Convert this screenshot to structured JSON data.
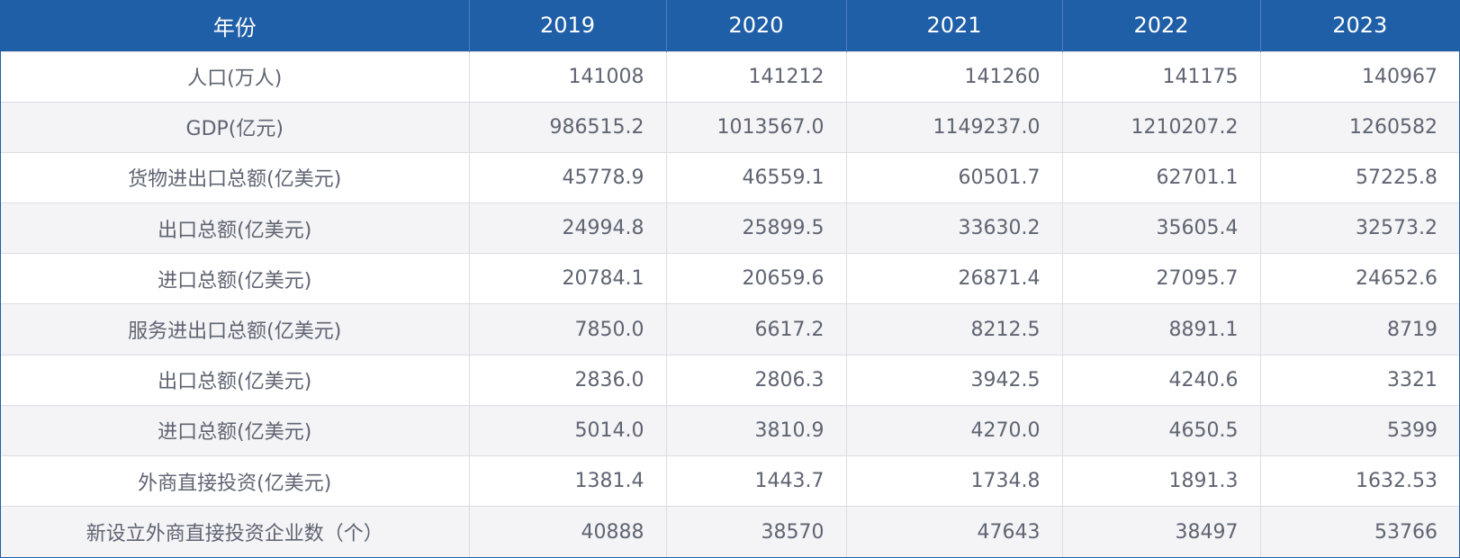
{
  "header": {
    "label": "年份",
    "years": [
      "2019",
      "2020",
      "2021",
      "2022",
      "2023"
    ]
  },
  "rows": [
    {
      "label": "人口(万人)",
      "values": [
        "141008",
        "141212",
        "141260",
        "141175",
        "140967"
      ]
    },
    {
      "label": "GDP(亿元)",
      "values": [
        "986515.2",
        "1013567.0",
        "1149237.0",
        "1210207.2",
        "1260582"
      ]
    },
    {
      "label": "货物进出口总额(亿美元)",
      "values": [
        "45778.9",
        "46559.1",
        "60501.7",
        "62701.1",
        "57225.8"
      ]
    },
    {
      "label": "出口总额(亿美元)",
      "values": [
        "24994.8",
        "25899.5",
        "33630.2",
        "35605.4",
        "32573.2"
      ]
    },
    {
      "label": "进口总额(亿美元)",
      "values": [
        "20784.1",
        "20659.6",
        "26871.4",
        "27095.7",
        "24652.6"
      ]
    },
    {
      "label": "服务进出口总额(亿美元)",
      "values": [
        "7850.0",
        "6617.2",
        "8212.5",
        "8891.1",
        "8719"
      ]
    },
    {
      "label": "出口总额(亿美元)",
      "values": [
        "2836.0",
        "2806.3",
        "3942.5",
        "4240.6",
        "3321"
      ]
    },
    {
      "label": "进口总额(亿美元)",
      "values": [
        "5014.0",
        "3810.9",
        "4270.0",
        "4650.5",
        "5399"
      ]
    },
    {
      "label": "外商直接投资(亿美元)",
      "values": [
        "1381.4",
        "1443.7",
        "1734.8",
        "1891.3",
        "1632.53"
      ]
    },
    {
      "label": "新设立外商直接投资企业数（个）",
      "values": [
        "40888",
        "38570",
        "47643",
        "38497",
        "53766"
      ]
    }
  ],
  "colors": {
    "header_bg": "#1f5fa8",
    "header_text": "#ffffff",
    "cell_text": "#5f6472",
    "stripe_bg": "#f4f4f6"
  }
}
